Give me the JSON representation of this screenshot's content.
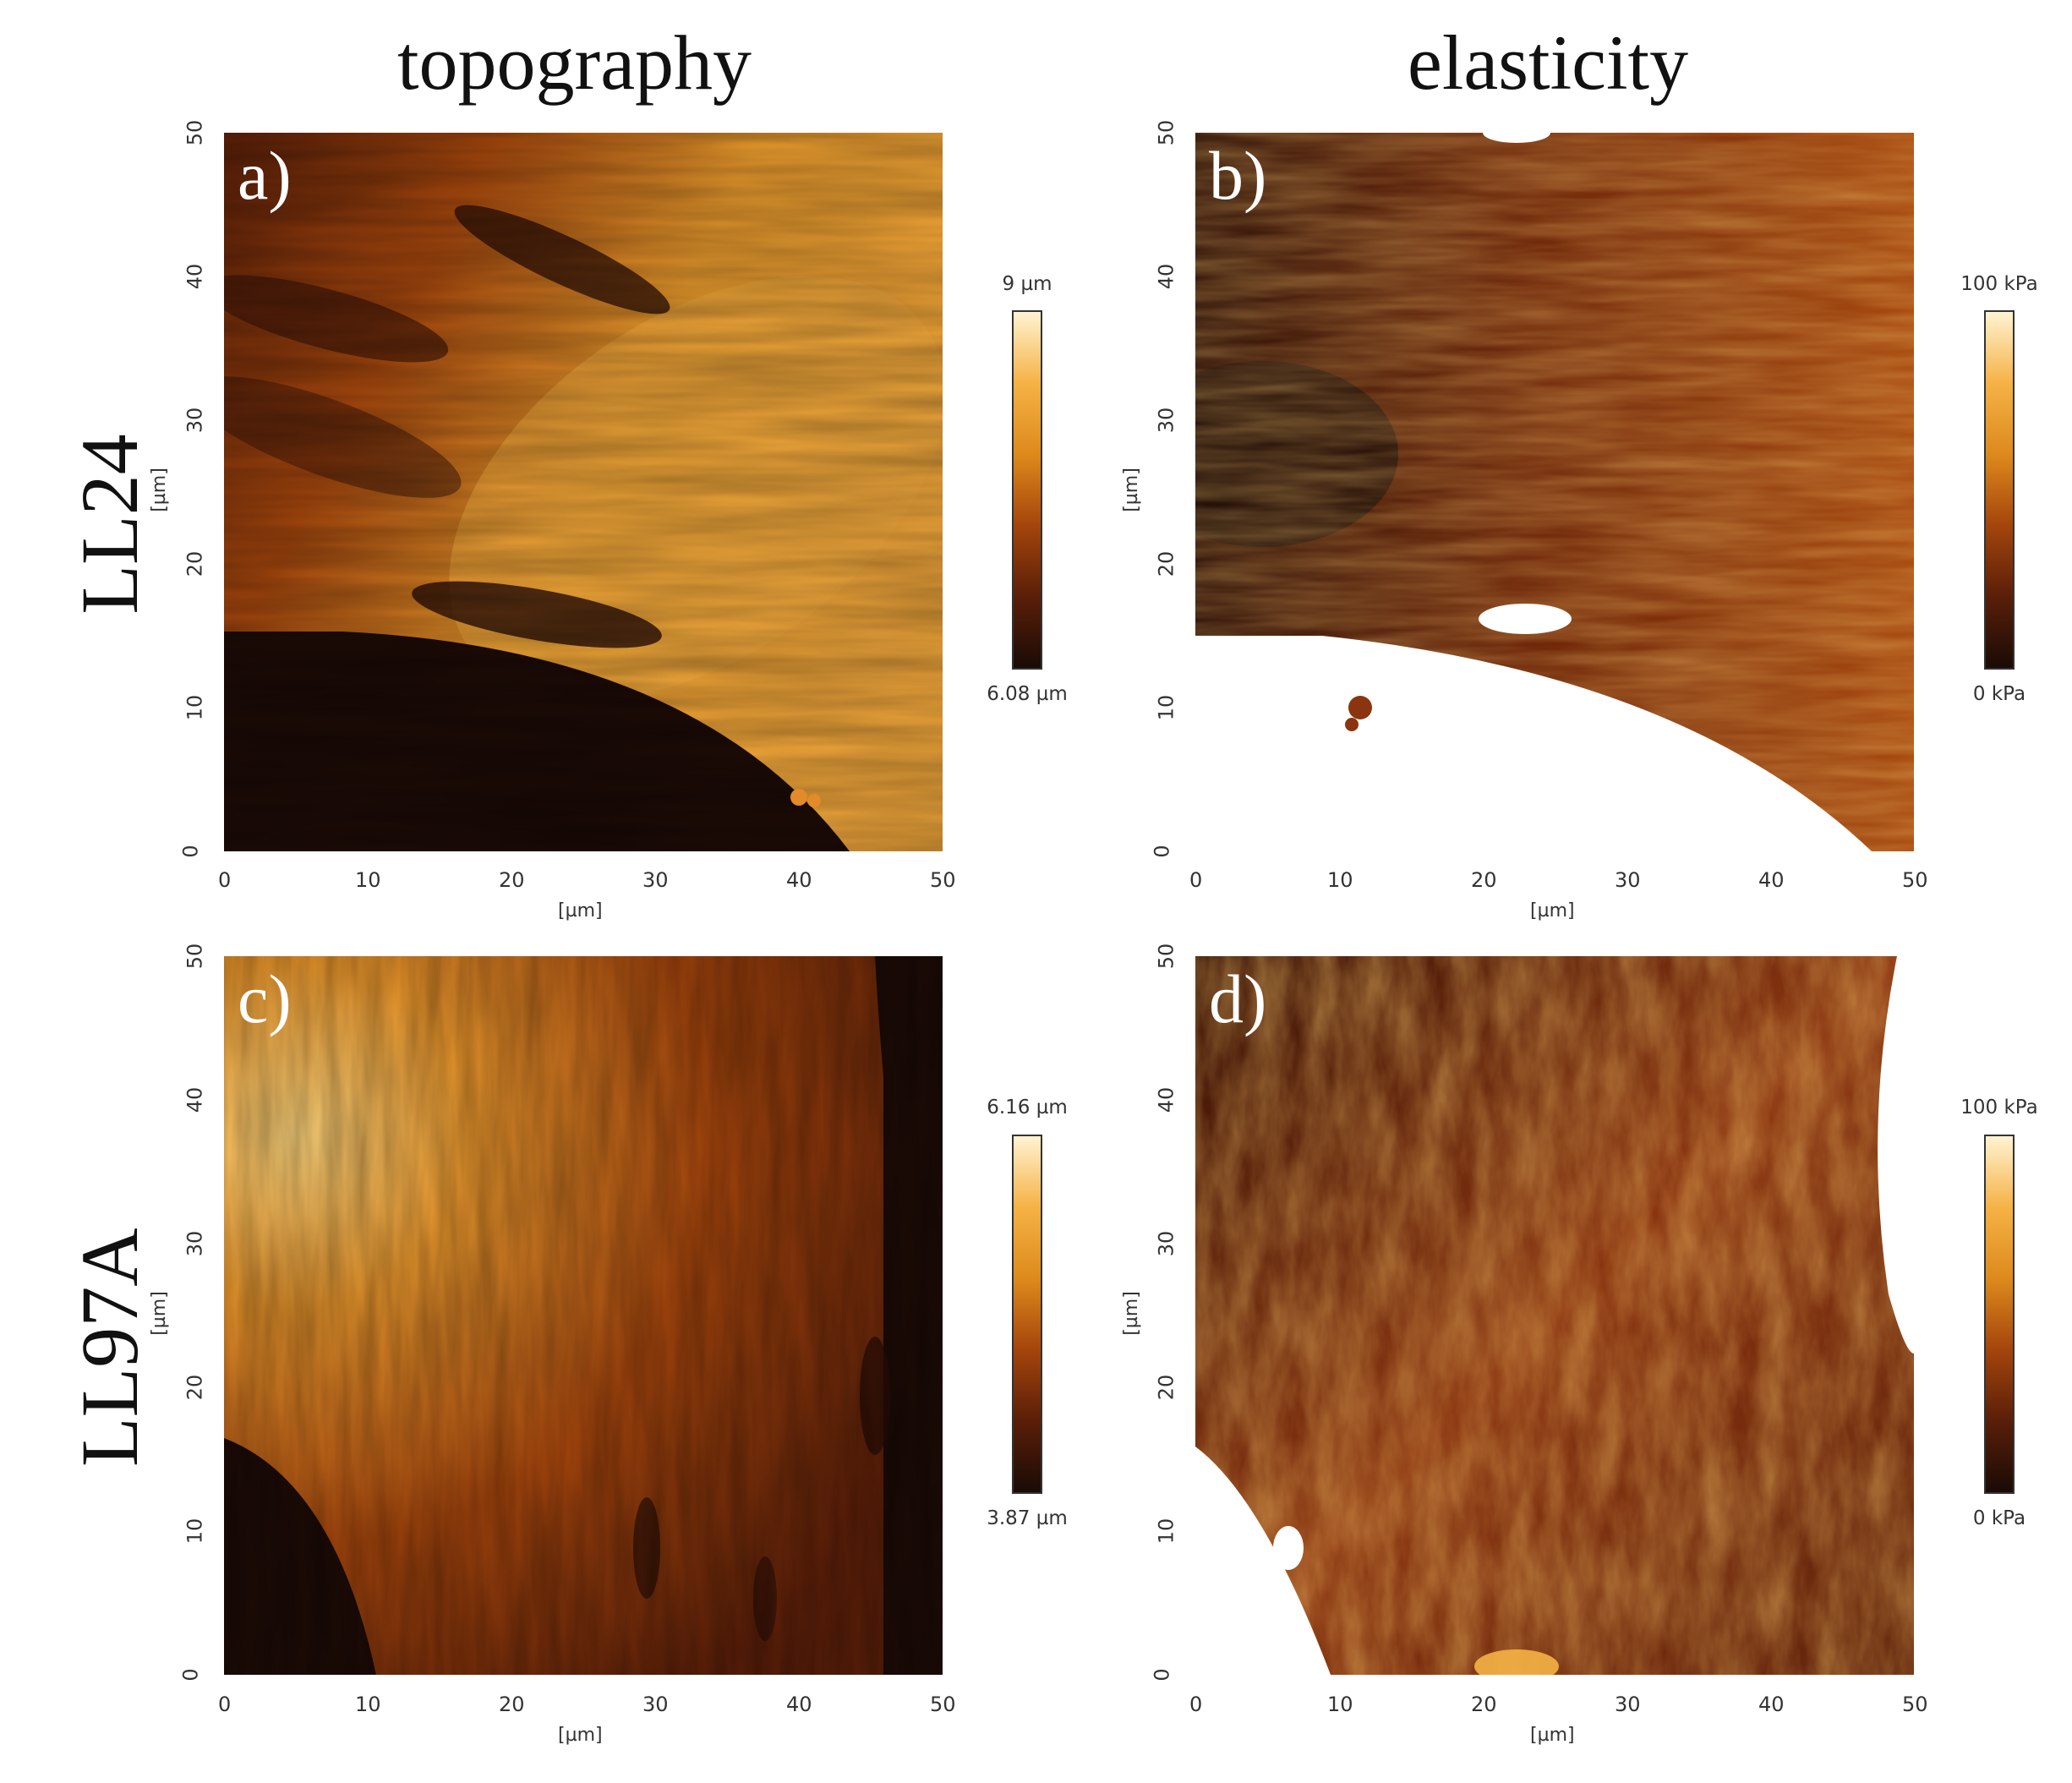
{
  "columns": [
    "topography",
    "elasticity"
  ],
  "rows": [
    "LL24",
    "LL97A"
  ],
  "panels": [
    {
      "label": "a)",
      "row": "LL24",
      "quantity": "topography",
      "colorbar_max": "9 µm",
      "colorbar_min": "6.08 µm"
    },
    {
      "label": "b)",
      "row": "LL24",
      "quantity": "elasticity",
      "colorbar_max": "100 kPa",
      "colorbar_min": "0 kPa"
    },
    {
      "label": "c)",
      "row": "LL97A",
      "quantity": "topography",
      "colorbar_max": "6.16 µm",
      "colorbar_min": "3.87 µm"
    },
    {
      "label": "d)",
      "row": "LL97A",
      "quantity": "elasticity",
      "colorbar_max": "100 kPa",
      "colorbar_min": "0 kPa"
    }
  ],
  "axes": {
    "x_ticks": [
      "0",
      "10",
      "20",
      "30",
      "40",
      "50"
    ],
    "y_ticks": [
      "0",
      "10",
      "20",
      "30",
      "40",
      "50"
    ],
    "x_unit": "[µm]",
    "y_unit": "[µm]"
  },
  "colormap": {
    "name": "afmhot",
    "colors": [
      "#1a0b06",
      "#5a1e08",
      "#a4450c",
      "#dd8a1c",
      "#f5b245",
      "#fff3d2"
    ]
  }
}
